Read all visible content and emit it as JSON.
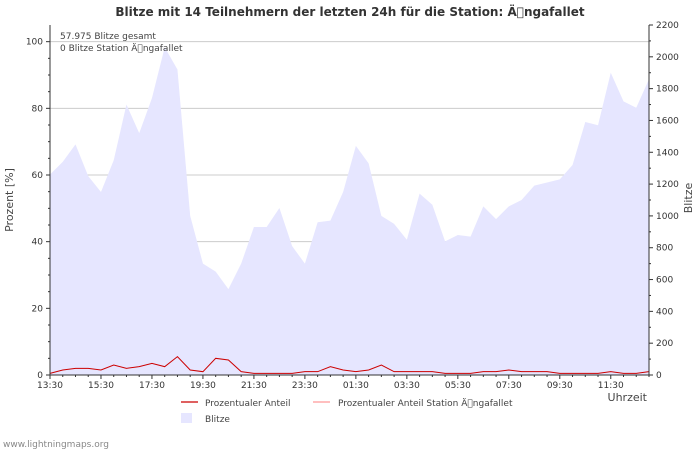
{
  "chart_data": {
    "type": "area",
    "title": "Blitze mit 14 Teilnehmern der letzten 24h für die Station: Ä\u0000ngafallet",
    "xlabel": "Uhrzeit",
    "ylabel_left": "Prozent   [%]",
    "ylabel_right": "Blitze",
    "ylim_left": [
      0,
      105
    ],
    "ylim_right": [
      0,
      2200
    ],
    "yticks_left": [
      0,
      20,
      40,
      60,
      80,
      100
    ],
    "yticks_right": [
      0,
      200,
      400,
      600,
      800,
      1000,
      1200,
      1400,
      1600,
      1800,
      2000,
      2200
    ],
    "grid": true,
    "x_start": "13:30",
    "x_step_minutes": 30,
    "x_tick_labels": [
      "13:30",
      "15:30",
      "17:30",
      "19:30",
      "21:30",
      "23:30",
      "01:30",
      "03:30",
      "05:30",
      "07:30",
      "09:30",
      "11:30"
    ],
    "annotations": [
      "57.975 Blitze gesamt",
      "0 Blitze Station Ä\u0000ngafallet"
    ],
    "legend": [
      {
        "name": "Prozentualer Anteil",
        "type": "line",
        "color": "#cc0000"
      },
      {
        "name": "Prozentualer Anteil Station Ä\u0000ngafallet",
        "type": "line",
        "color": "#ff9999"
      },
      {
        "name": "Blitze",
        "type": "area",
        "color": "#e6e6ff"
      }
    ],
    "series": [
      {
        "name": "Blitze",
        "axis": "right",
        "color": "#e6e6ff",
        "values": [
          1260,
          1340,
          1450,
          1250,
          1150,
          1350,
          1700,
          1520,
          1740,
          2060,
          1920,
          1000,
          700,
          650,
          540,
          700,
          930,
          930,
          1050,
          810,
          700,
          960,
          970,
          1150,
          1440,
          1330,
          1000,
          950,
          850,
          1140,
          1070,
          840,
          880,
          870,
          1060,
          980,
          1060,
          1100,
          1190,
          1210,
          1230,
          1320,
          1590,
          1570,
          1900,
          1720,
          1680,
          1860
        ]
      },
      {
        "name": "Prozentualer Anteil",
        "axis": "left",
        "color": "#cc0000",
        "values": [
          0.5,
          1.5,
          2,
          2,
          1.5,
          3,
          2,
          2.5,
          3.5,
          2.5,
          5.5,
          1.5,
          1,
          5,
          4.5,
          1,
          0.5,
          0.5,
          0.5,
          0.5,
          1,
          1,
          2.5,
          1.5,
          1,
          1.5,
          3,
          1,
          1,
          1,
          1,
          0.5,
          0.5,
          0.5,
          1,
          1,
          1.5,
          1,
          1,
          1,
          0.5,
          0.5,
          0.5,
          0.5,
          1,
          0.5,
          0.5,
          1
        ]
      },
      {
        "name": "Prozentualer Anteil Station Ä\u0000ngafallet",
        "axis": "left",
        "color": "#ff9999",
        "values": [
          0,
          0,
          0,
          0,
          0,
          0,
          0,
          0,
          0,
          0,
          0,
          0,
          0,
          0,
          0,
          0,
          0,
          0,
          0,
          0,
          0,
          0,
          0,
          0,
          0,
          0,
          0,
          0,
          0,
          0,
          0,
          0,
          0,
          0,
          0,
          0,
          0,
          0,
          0,
          0,
          0,
          0,
          0,
          0,
          0,
          0,
          0,
          0
        ]
      }
    ]
  },
  "footer": {
    "credit": "www.lightningmaps.org"
  }
}
